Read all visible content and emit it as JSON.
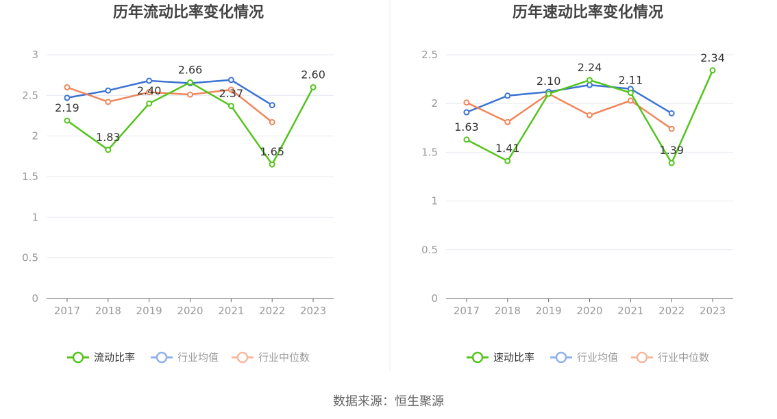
{
  "colors": {
    "main": "#52c41a",
    "avg": "#3b73d4",
    "median": "#f0855a",
    "avg_legend": "#8fb0ea",
    "median_legend": "#f7b79c",
    "axis_text": "#999999",
    "label_text": "#333333",
    "title_text": "#444444",
    "grid": "#e6e9f0",
    "axis_line": "#666666",
    "divider": "#eeeeee"
  },
  "chart_data": [
    {
      "type": "line",
      "title": "历年流动比率变化情况",
      "categories": [
        "2017",
        "2018",
        "2019",
        "2020",
        "2021",
        "2022",
        "2023"
      ],
      "ylim": [
        0,
        3
      ],
      "yticks": [
        "0",
        "0.5",
        "1",
        "1.5",
        "2",
        "2.5",
        "3"
      ],
      "grid": true,
      "legend_position": "bottom",
      "series": [
        {
          "name": "流动比率",
          "values": [
            2.19,
            1.83,
            2.4,
            2.66,
            2.37,
            1.65,
            2.6
          ],
          "labels": [
            "2.19",
            "1.83",
            "2.40",
            "2.66",
            "2.37",
            "1.65",
            "2.60"
          ]
        },
        {
          "name": "行业均值",
          "values": [
            2.47,
            2.56,
            2.68,
            2.65,
            2.69,
            2.38,
            null
          ]
        },
        {
          "name": "行业中位数",
          "values": [
            2.6,
            2.42,
            2.54,
            2.51,
            2.57,
            2.17,
            null
          ]
        }
      ]
    },
    {
      "type": "line",
      "title": "历年速动比率变化情况",
      "categories": [
        "2017",
        "2018",
        "2019",
        "2020",
        "2021",
        "2022",
        "2023"
      ],
      "ylim": [
        0,
        2.5
      ],
      "yticks": [
        "0",
        "0.5",
        "1",
        "1.5",
        "2",
        "2.5"
      ],
      "grid": true,
      "legend_position": "bottom",
      "series": [
        {
          "name": "速动比率",
          "values": [
            1.63,
            1.41,
            2.1,
            2.24,
            2.11,
            1.39,
            2.34
          ],
          "labels": [
            "1.63",
            "1.41",
            "2.10",
            "2.24",
            "2.11",
            "1.39",
            "2.34"
          ]
        },
        {
          "name": "行业均值",
          "values": [
            1.91,
            2.08,
            2.12,
            2.19,
            2.15,
            1.9,
            null
          ]
        },
        {
          "name": "行业中位数",
          "values": [
            2.01,
            1.81,
            2.1,
            1.88,
            2.03,
            1.74,
            null
          ]
        }
      ]
    }
  ],
  "footer": {
    "source": "数据来源：恒生聚源"
  }
}
